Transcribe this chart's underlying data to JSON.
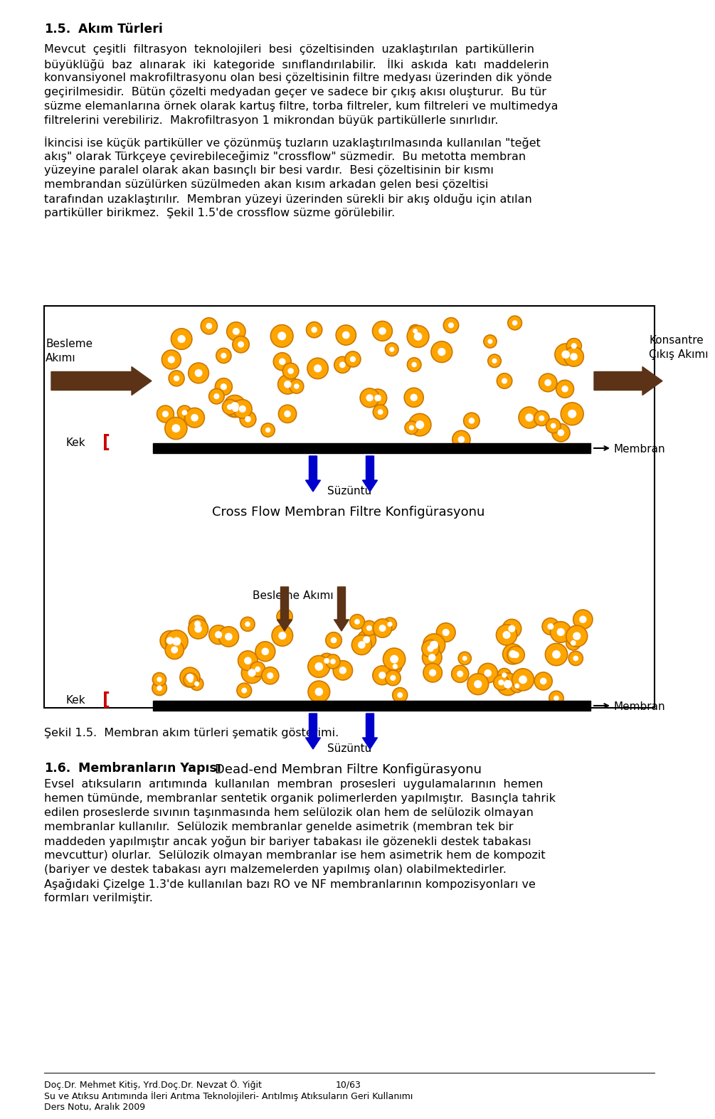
{
  "bg_color": "#ffffff",
  "page_width": 9.6,
  "page_height": 15.48,
  "text_color": "#000000",
  "brown_arrow": "#5C3317",
  "blue_arrow": "#0000CC",
  "orange_color": "#FFA500",
  "orange_edge": "#CC7700",
  "red_color": "#CC0000",
  "caption": "Şekil 1.5.  Membran akım türleri şematik gösterimi.",
  "footer1": "Doç.Dr. Mehmet Kitiş, Yrd.Doç.Dr. Nevzat Ö. Yiğit",
  "footer2": "Su ve Atıksu Arıtımında İleri Arıtma Teknolojileri- Arıtılmış Atıksuların Geri Kullanımı",
  "footer3": "Ders Notu, Aralık 2009",
  "page_num": "10/63",
  "para1_lines": [
    "Mevcut  çeşitli  filtrasyon  teknolojileri  besi  çözeltisinden  uzaklaştırılan  partiküllerin",
    "büyüklüğü  baz  alınarak  iki  kategoride  sınıflandırılabilir.   İlki  askıda  katı  maddelerin",
    "konvansiyonel makrofiltrasyonu olan besi çözeltisinin filtre medyası üzerinden dik yönde",
    "geçirilmesidir.  Bütün çözelti medyadan geçer ve sadece bir çıkış akısı oluşturur.  Bu tür",
    "süzme elemanlarına örnek olarak kartuş filtre, torba filtreler, kum filtreleri ve multimedya",
    "filtrelerini verebiliriz.  Makrofiltrasyon 1 mikrondan büyük partiküllerle sınırlıdır."
  ],
  "para2_lines": [
    "İkincisi ise küçük partiküller ve çözünmüş tuzların uzaklaştırılmasında kullanılan \"teğet",
    "akış\" olarak Türkçeye çevirebileceğimiz \"crossflow\" süzmedir.  Bu metotta membran",
    "yüzeyine paralel olarak akan basınçlı bir besi vardır.  Besi çözeltisinin bir kısmı",
    "membrandan süzülürken süzülmeden akan kısım arkadan gelen besi çözeltisi",
    "tarafından uzaklaştırılır.  Membran yüzeyi üzerinden sürekli bir akış olduğu için atılan",
    "partiküller birikmez.  Şekil 1.5'de crossflow süzme görülebilir."
  ],
  "para3_lines": [
    "Evsel  atıksuların  arıtımında  kullanılan  membran  prosesleri  uygulamalarının  hemen",
    "hemen tümünde, membranlar sentetik organik polimerlerden yapılmıştır.  Basınçla tahrik",
    "edilen proseslerde sıvının taşınmasında hem selülozik olan hem de selülozik olmayan",
    "membranlar kullanılır.  Selülozik membranlar genelde asimetrik (membran tek bir",
    "maddeden yapılmıştır ancak yoğun bir bariyer tabakası ile gözenekli destek tabakası",
    "mevcuttur) olurlar.  Selülozik olmayan membranlar ise hem asimetrik hem de kompozit",
    "(bariyer ve destek tabakası ayrı malzemelerden yapılmış olan) olabilmektedirler.",
    "Aşağıdaki Çizelge 1.3'de kullanılan bazı RO ve NF membranlarının kompozisyonları ve",
    "formları verilmiştir."
  ]
}
